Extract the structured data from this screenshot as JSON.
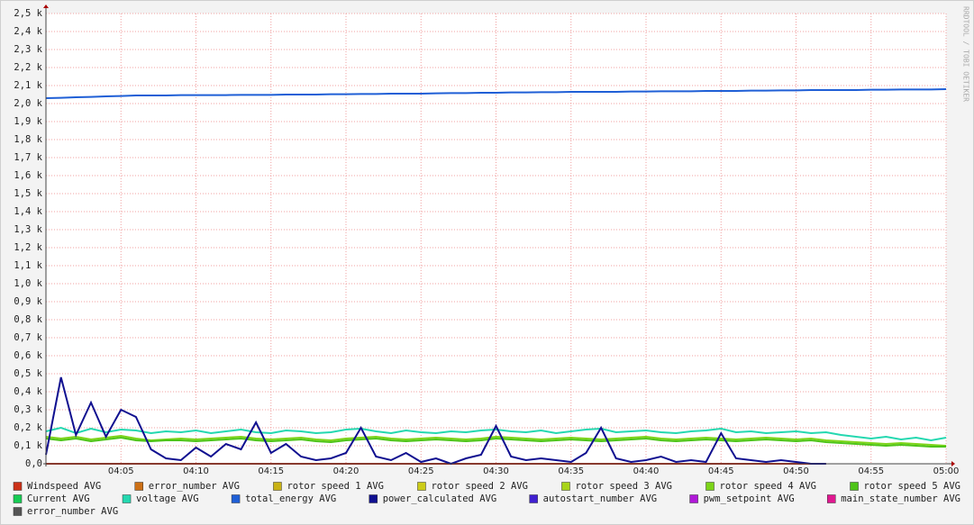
{
  "chart_data": {
    "type": "line",
    "watermark": "RRDTOOL / TOBI OETIKER",
    "x": [
      "04:00",
      "04:01",
      "04:02",
      "04:03",
      "04:04",
      "04:05",
      "04:06",
      "04:07",
      "04:08",
      "04:09",
      "04:10",
      "04:11",
      "04:12",
      "04:13",
      "04:14",
      "04:15",
      "04:16",
      "04:17",
      "04:18",
      "04:19",
      "04:20",
      "04:21",
      "04:22",
      "04:23",
      "04:24",
      "04:25",
      "04:26",
      "04:27",
      "04:28",
      "04:29",
      "04:30",
      "04:31",
      "04:32",
      "04:33",
      "04:34",
      "04:35",
      "04:36",
      "04:37",
      "04:38",
      "04:39",
      "04:40",
      "04:41",
      "04:42",
      "04:43",
      "04:44",
      "04:45",
      "04:46",
      "04:47",
      "04:48",
      "04:49",
      "04:50",
      "04:51",
      "04:52",
      "04:53",
      "04:54",
      "04:55",
      "04:56",
      "04:57",
      "04:58",
      "04:59",
      "05:00"
    ],
    "xlim": [
      "04:00",
      "05:00"
    ],
    "xticks": [
      "04:05",
      "04:10",
      "04:15",
      "04:20",
      "04:25",
      "04:30",
      "04:35",
      "04:40",
      "04:45",
      "04:50",
      "04:55",
      "05:00"
    ],
    "ylim": [
      0,
      2500
    ],
    "yticks": [
      {
        "value": 0,
        "label": "0,0"
      },
      {
        "value": 100,
        "label": "0,1 k"
      },
      {
        "value": 200,
        "label": "0,2 k"
      },
      {
        "value": 300,
        "label": "0,3 k"
      },
      {
        "value": 400,
        "label": "0,4 k"
      },
      {
        "value": 500,
        "label": "0,5 k"
      },
      {
        "value": 600,
        "label": "0,6 k"
      },
      {
        "value": 700,
        "label": "0,7 k"
      },
      {
        "value": 800,
        "label": "0,8 k"
      },
      {
        "value": 900,
        "label": "0,9 k"
      },
      {
        "value": 1000,
        "label": "1,0 k"
      },
      {
        "value": 1100,
        "label": "1,1 k"
      },
      {
        "value": 1200,
        "label": "1,2 k"
      },
      {
        "value": 1300,
        "label": "1,3 k"
      },
      {
        "value": 1400,
        "label": "1,4 k"
      },
      {
        "value": 1500,
        "label": "1,5 k"
      },
      {
        "value": 1600,
        "label": "1,6 k"
      },
      {
        "value": 1700,
        "label": "1,7 k"
      },
      {
        "value": 1800,
        "label": "1,8 k"
      },
      {
        "value": 1900,
        "label": "1,9 k"
      },
      {
        "value": 2000,
        "label": "2,0 k"
      },
      {
        "value": 2100,
        "label": "2,1 k"
      },
      {
        "value": 2200,
        "label": "2,2 k"
      },
      {
        "value": 2300,
        "label": "2,3 k"
      },
      {
        "value": 2400,
        "label": "2,4 k"
      },
      {
        "value": 2500,
        "label": "2,5 k"
      }
    ],
    "grid": true,
    "series": [
      {
        "name": "Windspeed AVG",
        "color": "#cc3118",
        "values": [
          0,
          0,
          0,
          0,
          0,
          0,
          0,
          0,
          0,
          0,
          0,
          0,
          0,
          0,
          0,
          0,
          0,
          0,
          0,
          0,
          0,
          0,
          0,
          0,
          0,
          0,
          0,
          0,
          0,
          0,
          0,
          0,
          0,
          0,
          0,
          0,
          0,
          0,
          0,
          0,
          0,
          0,
          0,
          0,
          0,
          0,
          0,
          0,
          0,
          0,
          0,
          0,
          0,
          null,
          null,
          null,
          null,
          null,
          null,
          null,
          null
        ]
      },
      {
        "name": "error_number AVG",
        "color": "#cc7016",
        "values": [
          null,
          null,
          null,
          null,
          null,
          null,
          null,
          null,
          null,
          null,
          null,
          null,
          null,
          null,
          null,
          null,
          null,
          null,
          null,
          null,
          null,
          null,
          null,
          null,
          null,
          null,
          null,
          null,
          null,
          null,
          null,
          null,
          null,
          null,
          null,
          null,
          null,
          null,
          null,
          null,
          null,
          null,
          null,
          null,
          null,
          null,
          null,
          null,
          null,
          null,
          null,
          null,
          null,
          null,
          null,
          null,
          null,
          null,
          null,
          null,
          null
        ]
      },
      {
        "name": "rotor speed 1 AVG",
        "color": "#c9b215",
        "values": [
          null,
          null,
          null,
          null,
          null,
          null,
          null,
          null,
          null,
          null,
          null,
          null,
          null,
          null,
          null,
          null,
          null,
          null,
          null,
          null,
          null,
          null,
          null,
          null,
          null,
          null,
          null,
          null,
          null,
          null,
          null,
          null,
          null,
          null,
          null,
          null,
          null,
          null,
          null,
          null,
          null,
          null,
          null,
          null,
          null,
          null,
          null,
          null,
          null,
          null,
          null,
          null,
          null,
          null,
          null,
          null,
          null,
          null,
          null,
          null,
          null
        ]
      },
      {
        "name": "rotor speed 2 AVG",
        "color": "#cccc18",
        "values": [
          null,
          null,
          null,
          null,
          null,
          null,
          null,
          null,
          null,
          null,
          null,
          null,
          null,
          null,
          null,
          null,
          null,
          null,
          null,
          null,
          null,
          null,
          null,
          null,
          null,
          null,
          null,
          null,
          null,
          null,
          null,
          null,
          null,
          null,
          null,
          null,
          null,
          null,
          null,
          null,
          null,
          null,
          null,
          null,
          null,
          null,
          null,
          null,
          null,
          null,
          null,
          null,
          null,
          null,
          null,
          null,
          null,
          null,
          null,
          null,
          null
        ]
      },
      {
        "name": "rotor speed 3 AVG",
        "color": "#a8d418",
        "values": [
          null,
          null,
          null,
          null,
          null,
          null,
          null,
          null,
          null,
          null,
          null,
          null,
          null,
          null,
          null,
          null,
          null,
          null,
          null,
          null,
          null,
          null,
          null,
          null,
          null,
          null,
          null,
          null,
          null,
          null,
          null,
          null,
          null,
          null,
          null,
          null,
          null,
          null,
          null,
          null,
          null,
          null,
          null,
          null,
          null,
          null,
          null,
          null,
          null,
          null,
          null,
          null,
          null,
          null,
          null,
          null,
          null,
          null,
          null,
          null,
          null
        ]
      },
      {
        "name": "rotor speed 4 AVG",
        "color": "#7cd418",
        "values": [
          150,
          140,
          150,
          135,
          145,
          155,
          140,
          130,
          135,
          140,
          135,
          140,
          145,
          150,
          140,
          135,
          140,
          145,
          135,
          130,
          140,
          145,
          150,
          140,
          135,
          140,
          145,
          140,
          135,
          140,
          150,
          145,
          140,
          135,
          140,
          145,
          140,
          135,
          140,
          145,
          150,
          140,
          135,
          140,
          145,
          140,
          135,
          140,
          145,
          140,
          135,
          140,
          130,
          125,
          120,
          115,
          110,
          115,
          110,
          105,
          100
        ]
      },
      {
        "name": "rotor speed 5 AVG",
        "color": "#4ec418",
        "values": [
          140,
          130,
          140,
          125,
          135,
          145,
          130,
          125,
          130,
          130,
          125,
          130,
          135,
          140,
          130,
          125,
          130,
          135,
          125,
          120,
          130,
          135,
          140,
          130,
          125,
          130,
          135,
          130,
          125,
          130,
          140,
          135,
          130,
          125,
          130,
          135,
          130,
          125,
          130,
          135,
          140,
          130,
          125,
          130,
          135,
          130,
          125,
          130,
          135,
          130,
          125,
          130,
          120,
          115,
          110,
          105,
          100,
          105,
          100,
          95,
          95
        ]
      },
      {
        "name": "Current AVG",
        "color": "#18cc54",
        "values": [
          null,
          null,
          null,
          null,
          null,
          null,
          null,
          null,
          null,
          null,
          null,
          null,
          null,
          null,
          null,
          null,
          null,
          null,
          null,
          null,
          null,
          null,
          null,
          null,
          null,
          null,
          null,
          null,
          null,
          null,
          null,
          null,
          null,
          null,
          null,
          null,
          null,
          null,
          null,
          null,
          null,
          null,
          null,
          null,
          null,
          null,
          null,
          null,
          null,
          null,
          null,
          null,
          null,
          null,
          null,
          null,
          null,
          null,
          null,
          null,
          null
        ]
      },
      {
        "name": "voltage AVG",
        "color": "#24d8b0",
        "values": [
          180,
          200,
          170,
          195,
          175,
          190,
          185,
          170,
          180,
          175,
          185,
          170,
          180,
          190,
          175,
          170,
          185,
          180,
          170,
          175,
          190,
          195,
          180,
          170,
          185,
          175,
          170,
          180,
          175,
          185,
          190,
          180,
          175,
          185,
          170,
          180,
          190,
          195,
          175,
          180,
          185,
          175,
          170,
          180,
          185,
          195,
          175,
          180,
          170,
          175,
          180,
          170,
          175,
          160,
          150,
          140,
          150,
          135,
          145,
          130,
          145
        ]
      },
      {
        "name": "total_energy AVG",
        "color": "#1f5fd6",
        "values": [
          2030,
          2032,
          2035,
          2037,
          2040,
          2042,
          2045,
          2045,
          2045,
          2047,
          2047,
          2047,
          2047,
          2048,
          2048,
          2048,
          2050,
          2050,
          2050,
          2052,
          2052,
          2053,
          2053,
          2055,
          2055,
          2055,
          2057,
          2058,
          2058,
          2060,
          2060,
          2062,
          2062,
          2063,
          2063,
          2065,
          2065,
          2065,
          2065,
          2067,
          2067,
          2068,
          2068,
          2068,
          2070,
          2070,
          2070,
          2072,
          2072,
          2073,
          2073,
          2075,
          2075,
          2075,
          2075,
          2077,
          2077,
          2078,
          2078,
          2078,
          2080
        ]
      },
      {
        "name": "power_calculated AVG",
        "color": "#101090",
        "values": [
          50,
          480,
          160,
          340,
          150,
          300,
          260,
          80,
          30,
          20,
          90,
          40,
          110,
          80,
          230,
          60,
          110,
          40,
          20,
          30,
          60,
          200,
          40,
          20,
          60,
          10,
          30,
          0,
          30,
          50,
          210,
          40,
          20,
          30,
          20,
          10,
          60,
          200,
          30,
          10,
          20,
          40,
          10,
          20,
          10,
          170,
          30,
          20,
          10,
          20,
          10,
          0,
          0,
          null,
          null,
          null,
          null,
          null,
          null,
          null,
          null
        ]
      },
      {
        "name": "autostart_number AVG",
        "color": "#4020d0",
        "values": [
          null,
          null,
          null,
          null,
          null,
          null,
          null,
          null,
          null,
          null,
          null,
          null,
          null,
          null,
          null,
          null,
          null,
          null,
          null,
          null,
          null,
          null,
          null,
          null,
          null,
          null,
          null,
          null,
          null,
          null,
          null,
          null,
          null,
          null,
          null,
          null,
          null,
          null,
          null,
          null,
          null,
          null,
          null,
          null,
          null,
          null,
          null,
          null,
          null,
          null,
          null,
          null,
          null,
          null,
          null,
          null,
          null,
          null,
          null,
          null,
          null
        ]
      },
      {
        "name": "pwm_setpoint AVG",
        "color": "#b018d8",
        "values": [
          null,
          null,
          null,
          null,
          null,
          null,
          null,
          null,
          null,
          null,
          null,
          null,
          null,
          null,
          null,
          null,
          null,
          null,
          null,
          null,
          null,
          null,
          null,
          null,
          null,
          null,
          null,
          null,
          null,
          null,
          null,
          null,
          null,
          null,
          null,
          null,
          null,
          null,
          null,
          null,
          null,
          null,
          null,
          null,
          null,
          null,
          null,
          null,
          null,
          null,
          null,
          null,
          null,
          null,
          null,
          null,
          null,
          null,
          null,
          null,
          null
        ]
      },
      {
        "name": "main_state_number AVG",
        "color": "#e01890",
        "values": [
          null,
          null,
          null,
          null,
          null,
          null,
          null,
          null,
          null,
          null,
          null,
          null,
          null,
          null,
          null,
          null,
          null,
          null,
          null,
          null,
          null,
          null,
          null,
          null,
          null,
          null,
          null,
          null,
          null,
          null,
          null,
          null,
          null,
          null,
          null,
          null,
          null,
          null,
          null,
          null,
          null,
          null,
          null,
          null,
          null,
          null,
          null,
          null,
          null,
          null,
          null,
          null,
          null,
          null,
          null,
          null,
          null,
          null,
          null,
          null,
          null
        ]
      },
      {
        "name": "error_number AVG",
        "color": "#555555",
        "values": [
          null,
          null,
          null,
          null,
          null,
          null,
          null,
          null,
          null,
          null,
          null,
          null,
          null,
          null,
          null,
          null,
          null,
          null,
          null,
          null,
          null,
          null,
          null,
          null,
          null,
          null,
          null,
          null,
          null,
          null,
          null,
          null,
          null,
          null,
          null,
          null,
          null,
          null,
          null,
          null,
          null,
          null,
          null,
          null,
          null,
          null,
          null,
          null,
          null,
          null,
          null,
          null,
          null,
          null,
          null,
          null,
          null,
          null,
          null,
          null,
          null
        ]
      }
    ]
  }
}
